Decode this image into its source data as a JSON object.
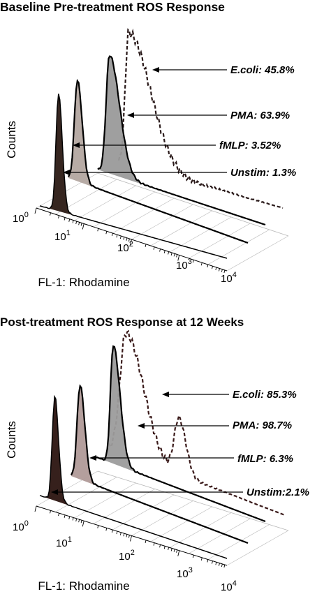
{
  "chart_data": [
    {
      "type": "area",
      "title": "Baseline Pre-treatment ROS Response",
      "ylabel": "Counts",
      "xlabel": "FL-1: Rhodamine",
      "x_scale": "log",
      "xlim": [
        1,
        10000
      ],
      "x_ticks": [
        {
          "base": "10",
          "exp": "0"
        },
        {
          "base": "10",
          "exp": "1"
        },
        {
          "base": "10",
          "exp": "2"
        },
        {
          "base": "10",
          "exp": "3"
        },
        {
          "base": "10",
          "exp": "4"
        }
      ],
      "series": [
        {
          "name": "E.coli",
          "label": "E.coli: 45.8%",
          "percent": 45.8,
          "peak_x": 60,
          "style": "dashed",
          "color": "#2a1a1a"
        },
        {
          "name": "PMA",
          "label": "PMA: 63.9%",
          "percent": 63.9,
          "peak_x": 20,
          "style": "filled",
          "color": "#9a9a9a"
        },
        {
          "name": "fMLP",
          "label": "fMLP: 3.52%",
          "percent": 3.52,
          "peak_x": 4.5,
          "style": "filled",
          "color": "#b3a6a0"
        },
        {
          "name": "Unstim",
          "label": "Unstim: 1.3%",
          "percent": 1.3,
          "peak_x": 2.2,
          "style": "filled",
          "color": "#2b1a14"
        }
      ]
    },
    {
      "type": "area",
      "title": "Post-treatment ROS Response at 12 Weeks",
      "ylabel": "Counts",
      "xlabel": "FL-1: Rhodamine",
      "x_scale": "log",
      "xlim": [
        1,
        10000
      ],
      "x_ticks": [
        {
          "base": "10",
          "exp": "0"
        },
        {
          "base": "10",
          "exp": "1"
        },
        {
          "base": "10",
          "exp": "2"
        },
        {
          "base": "10",
          "exp": "3"
        },
        {
          "base": "10",
          "exp": "4"
        }
      ],
      "series": [
        {
          "name": "E.coli",
          "label": "E.coli: 85.3%",
          "percent": 85.3,
          "peak_x": 50,
          "style": "dashed",
          "color": "#3a1a1a"
        },
        {
          "name": "PMA",
          "label": "PMA: 98.7%",
          "percent": 98.7,
          "peak_x": 18,
          "style": "filled",
          "color": "#9c9c9c"
        },
        {
          "name": "fMLP",
          "label": "fMLP: 6.3%",
          "percent": 6.3,
          "peak_x": 4.5,
          "style": "filled",
          "color": "#b09a98"
        },
        {
          "name": "Unstim",
          "label": "Unstim:2.1%",
          "percent": 2.1,
          "peak_x": 2.2,
          "style": "filled",
          "color": "#2b1410"
        }
      ]
    }
  ]
}
